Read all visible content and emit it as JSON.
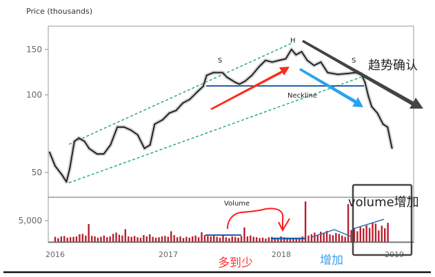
{
  "chart_data": {
    "type": "line",
    "title": "Price (thousands)",
    "y_scale": "log",
    "ylim": [
      38,
      180
    ],
    "yticks": [
      {
        "value": 150,
        "label": "150"
      },
      {
        "value": 100,
        "label": "100"
      },
      {
        "value": 50,
        "label": "50"
      }
    ],
    "xlim": [
      2015.95,
      2019.1
    ],
    "xticks": [
      {
        "value": 2016,
        "label": "2016"
      },
      {
        "value": 2017,
        "label": "2017"
      },
      {
        "value": 2018,
        "label": "2018"
      },
      {
        "value": 2019,
        "label": "2019"
      }
    ],
    "price_series": {
      "name": "Price",
      "points": [
        [
          2015.95,
          60
        ],
        [
          2016.0,
          53
        ],
        [
          2016.06,
          49
        ],
        [
          2016.1,
          46
        ],
        [
          2016.13,
          52
        ],
        [
          2016.17,
          66
        ],
        [
          2016.21,
          68
        ],
        [
          2016.26,
          66
        ],
        [
          2016.3,
          62
        ],
        [
          2016.37,
          59
        ],
        [
          2016.43,
          59
        ],
        [
          2016.49,
          64
        ],
        [
          2016.55,
          75
        ],
        [
          2016.61,
          75
        ],
        [
          2016.67,
          73
        ],
        [
          2016.73,
          70
        ],
        [
          2016.79,
          62
        ],
        [
          2016.84,
          64
        ],
        [
          2016.88,
          77
        ],
        [
          2016.95,
          80
        ],
        [
          2017.01,
          85
        ],
        [
          2017.07,
          87
        ],
        [
          2017.13,
          93
        ],
        [
          2017.19,
          96
        ],
        [
          2017.25,
          102
        ],
        [
          2017.31,
          108
        ],
        [
          2017.34,
          119
        ],
        [
          2017.4,
          122
        ],
        [
          2017.48,
          122
        ],
        [
          2017.52,
          117
        ],
        [
          2017.59,
          112
        ],
        [
          2017.63,
          110
        ],
        [
          2017.68,
          113
        ],
        [
          2017.74,
          119
        ],
        [
          2017.8,
          128
        ],
        [
          2017.86,
          136
        ],
        [
          2017.92,
          134
        ],
        [
          2017.98,
          136
        ],
        [
          2018.04,
          138
        ],
        [
          2018.09,
          150
        ],
        [
          2018.13,
          143
        ],
        [
          2018.18,
          147
        ],
        [
          2018.23,
          136
        ],
        [
          2018.29,
          130
        ],
        [
          2018.35,
          134
        ],
        [
          2018.41,
          122
        ],
        [
          2018.5,
          120
        ],
        [
          2018.59,
          121
        ],
        [
          2018.65,
          122
        ],
        [
          2018.71,
          120
        ],
        [
          2018.74,
          112
        ],
        [
          2018.77,
          99
        ],
        [
          2018.8,
          90
        ],
        [
          2018.85,
          85
        ],
        [
          2018.9,
          77
        ],
        [
          2018.94,
          75
        ],
        [
          2018.98,
          62
        ]
      ]
    },
    "volume": {
      "label": "Volume",
      "ytick": {
        "value": 5000,
        "label": "5,000"
      },
      "start": 2016.0,
      "step": 0.027,
      "values": [
        1200,
        900,
        1300,
        1400,
        1000,
        1100,
        1200,
        1300,
        1800,
        1900,
        1500,
        4200,
        1400,
        1300,
        1000,
        1200,
        1500,
        1100,
        1300,
        1900,
        2200,
        1700,
        1500,
        3000,
        1300,
        1200,
        1400,
        1100,
        1000,
        1600,
        1300,
        1800,
        1200,
        1000,
        1100,
        1300,
        1400,
        1200,
        2500,
        1600,
        1100,
        1300,
        900,
        1200,
        1000,
        1300,
        1500,
        1100,
        2300,
        1600,
        1400,
        1300,
        1700,
        1200,
        1000,
        1500,
        1100,
        900,
        1300,
        1200,
        1000,
        1400,
        3400,
        1300,
        1500,
        1200,
        1100,
        900,
        1000,
        800,
        1100,
        1200,
        1000,
        900,
        1300,
        1100,
        1000,
        900,
        700,
        800,
        1000,
        1300,
        9500,
        1500,
        1800,
        2200,
        1600,
        2400,
        2000,
        2600,
        1800,
        1600,
        2100,
        1900,
        1500,
        1200,
        8900,
        2800,
        3100,
        2500,
        3500,
        3200,
        3900,
        3300,
        4600,
        4300,
        2700,
        3800,
        3200,
        4500
      ]
    },
    "annotations": {
      "left_shoulder": "S",
      "head": "H",
      "right_shoulder": "S",
      "neckline": "Neckline",
      "trend_confirm": "趋势确认",
      "volume_increase": "volume增加",
      "many_to_few": "多到少",
      "increase": "增加"
    },
    "colors": {
      "price": "#222222",
      "volume": "#b5202e",
      "channel": "#2aa87a",
      "neckline": "#1f5fa8",
      "red_arrow": "#ff2a1a",
      "blue_arrow": "#29a3f0",
      "dark_arrow": "#444444"
    }
  }
}
